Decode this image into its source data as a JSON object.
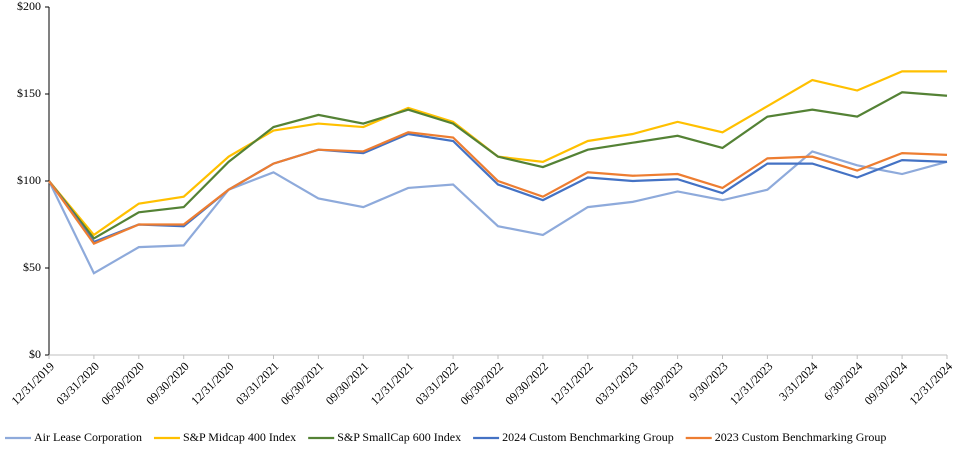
{
  "chart_data": {
    "type": "line",
    "categories": [
      "12/31/2019",
      "03/31/2020",
      "06/30/2020",
      "09/30/2020",
      "12/31/2020",
      "03/31/2021",
      "06/30/2021",
      "09/30/2021",
      "12/31/2021",
      "03/31/2022",
      "06/30/2022",
      "09/30/2022",
      "12/31/2022",
      "03/31/2023",
      "06/30/2023",
      "9/30/2023",
      "12/31/2023",
      "3/31/2024",
      "6/30/2024",
      "09/30/2024",
      "12/31/2024"
    ],
    "series": [
      {
        "name": "Air Lease Corporation",
        "color": "#8eaadb",
        "values": [
          100,
          47,
          62,
          63,
          95,
          105,
          90,
          85,
          96,
          98,
          74,
          69,
          85,
          88,
          94,
          89,
          95,
          117,
          109,
          104,
          111
        ]
      },
      {
        "name": "S&P Midcap 400 Index",
        "color": "#ffc000",
        "values": [
          100,
          69,
          87,
          91,
          114,
          129,
          133,
          131,
          142,
          134,
          114,
          111,
          123,
          127,
          134,
          128,
          143,
          158,
          152,
          163,
          163
        ]
      },
      {
        "name": "S&P SmallCap 600 Index",
        "color": "#548235",
        "values": [
          100,
          67,
          82,
          85,
          111,
          131,
          138,
          133,
          141,
          133,
          114,
          108,
          118,
          122,
          126,
          119,
          137,
          141,
          137,
          151,
          149
        ]
      },
      {
        "name": "2024 Custom Benchmarking Group",
        "color": "#4472c4",
        "values": [
          100,
          65,
          75,
          74,
          95,
          110,
          118,
          116,
          127,
          123,
          98,
          89,
          102,
          100,
          101,
          93,
          110,
          110,
          102,
          112,
          111
        ]
      },
      {
        "name": "2023 Custom Benchmarking Group",
        "color": "#ed7d31",
        "values": [
          100,
          64,
          75,
          75,
          95,
          110,
          118,
          117,
          128,
          125,
          100,
          91,
          105,
          103,
          104,
          96,
          113,
          114,
          106,
          116,
          115
        ]
      }
    ],
    "ylim": [
      0,
      200
    ],
    "yticks": [
      {
        "value": 0,
        "label": "$0"
      },
      {
        "value": 50,
        "label": "$50"
      },
      {
        "value": 100,
        "label": "$100"
      },
      {
        "value": 150,
        "label": "$150"
      },
      {
        "value": 200,
        "label": "$200"
      }
    ],
    "grid": false,
    "legend": "bottom"
  }
}
